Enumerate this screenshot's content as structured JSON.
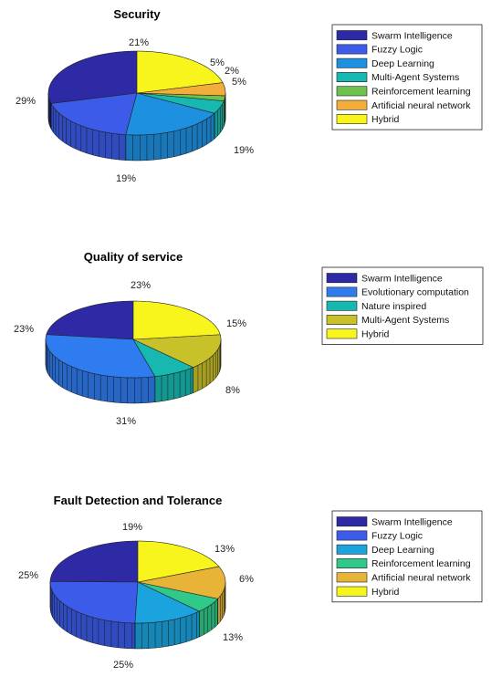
{
  "chart_data": [
    {
      "type": "pie",
      "title": "Security",
      "slices": [
        {
          "label": "Swarm Intelligence",
          "value": 29,
          "label_text": "29%",
          "color": "#2e2aa6"
        },
        {
          "label": "Fuzzy Logic",
          "value": 19,
          "label_text": "19%",
          "color": "#3b5be8"
        },
        {
          "label": "Deep Learning",
          "value": 19,
          "label_text": "19%",
          "color": "#1e90e0"
        },
        {
          "label": "Multi-Agent Systems",
          "value": 5,
          "label_text": "5%",
          "color": "#17b8b0"
        },
        {
          "label": "Reinforcement learning",
          "value": 2,
          "label_text": "2%",
          "color": "#6cc24a"
        },
        {
          "label": "Artificial neural network",
          "value": 5,
          "label_text": "5%",
          "color": "#f3ad3b"
        },
        {
          "label": "Hybrid",
          "value": 21,
          "label_text": "21%",
          "color": "#f7f51c"
        }
      ],
      "legend": [
        "Swarm Intelligence",
        "Fuzzy Logic",
        "Deep Learning",
        "Multi-Agent Systems",
        "Reinforcement learning",
        "Artificial neural network",
        "Hybrid"
      ],
      "legend_position": "right"
    },
    {
      "type": "pie",
      "title": "Quality of service",
      "slices": [
        {
          "label": "Swarm Intelligence",
          "value": 23,
          "label_text": "23%",
          "color": "#2e2aa6"
        },
        {
          "label": "Evolutionary computation",
          "value": 31,
          "label_text": "31%",
          "color": "#2f7cf0"
        },
        {
          "label": "Nature inspired",
          "value": 8,
          "label_text": "8%",
          "color": "#17b8b0"
        },
        {
          "label": "Multi-Agent Systems",
          "value": 15,
          "label_text": "15%",
          "color": "#c9c12a"
        },
        {
          "label": "Hybrid",
          "value": 23,
          "label_text": "23%",
          "color": "#f7f51c"
        }
      ],
      "legend": [
        "Swarm Intelligence",
        "Evolutionary computation",
        "Nature inspired",
        "Multi-Agent Systems",
        "Hybrid"
      ],
      "legend_position": "right"
    },
    {
      "type": "pie",
      "title": "Fault Detection and Tolerance",
      "slices": [
        {
          "label": "Swarm Intelligence",
          "value": 25,
          "label_text": "25%",
          "color": "#2e2aa6"
        },
        {
          "label": "Fuzzy Logic",
          "value": 25,
          "label_text": "25%",
          "color": "#3b5be8"
        },
        {
          "label": "Deep Learning",
          "value": 13,
          "label_text": "13%",
          "color": "#1aa3dd"
        },
        {
          "label": "Reinforcement learning",
          "value": 6,
          "label_text": "6%",
          "color": "#2fc98a"
        },
        {
          "label": "Artificial neural network",
          "value": 13,
          "label_text": "13%",
          "color": "#e8b437"
        },
        {
          "label": "Hybrid",
          "value": 19,
          "label_text": "19%",
          "color": "#f7f51c"
        }
      ],
      "legend": [
        "Swarm Intelligence",
        "Fuzzy Logic",
        "Deep Learning",
        "Reinforcement learning",
        "Artificial neural network",
        "Hybrid"
      ],
      "legend_position": "right"
    }
  ]
}
